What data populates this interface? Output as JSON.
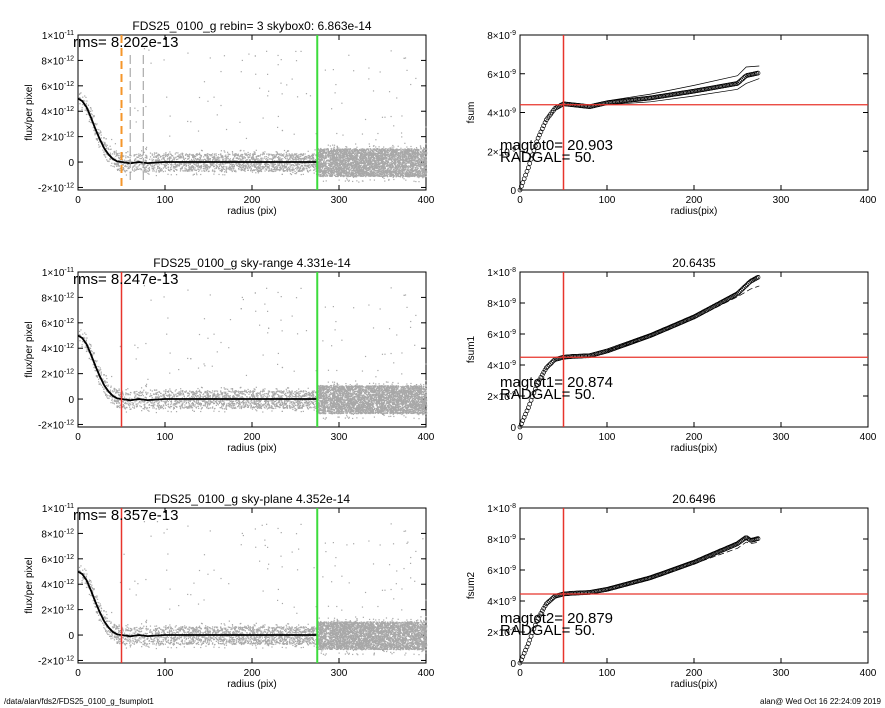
{
  "footer": {
    "path": "/data/alan/fds2/FDS25_0100_g_fsumplot1",
    "stamp": "alan@  Wed Oct 16 22:24:09 2019"
  },
  "colors": {
    "red_line": "#e8342c",
    "green_line": "#3cdc3c",
    "orange_dash": "#f5962a",
    "scatter_gray": "#a8a8a8",
    "profile": "#000000"
  },
  "chart_data": [
    {
      "id": "profile-row1",
      "type": "scatter",
      "title": "FDS25_0100_g rebin= 3    skybox0:  6.863e-14",
      "annotation": "rms= 8.202e-13",
      "xlabel": "radius (pix)",
      "ylabel": "flux/per pixel",
      "xlim": [
        0,
        400
      ],
      "ylim": [
        -2.2e-12,
        1e-11
      ],
      "xticks": [
        "0",
        "100",
        "200",
        "300",
        "400"
      ],
      "yticks": [
        {
          "value": -2e-12,
          "mant": "-2×10",
          "exp": "-12"
        },
        {
          "value": 0,
          "mant": "0",
          "exp": ""
        },
        {
          "value": 2e-12,
          "mant": "2×10",
          "exp": "-12"
        },
        {
          "value": 4e-12,
          "mant": "4×10",
          "exp": "-12"
        },
        {
          "value": 6e-12,
          "mant": "6×10",
          "exp": "-12"
        },
        {
          "value": 8e-12,
          "mant": "8×10",
          "exp": "-12"
        },
        {
          "value": 1e-11,
          "mant": "1×10",
          "exp": "-11"
        }
      ],
      "green_vline_x": 275,
      "red_vline_x": null,
      "orange_dashed_vline_x": 50,
      "gray_dashed_vlines_x": [
        60,
        75
      ],
      "profile": {
        "x": [
          0,
          5,
          10,
          15,
          20,
          25,
          30,
          35,
          40,
          45,
          50,
          60,
          70,
          80,
          100,
          150,
          200,
          250,
          275
        ],
        "y": [
          5e-12,
          4.8e-12,
          4.3e-12,
          3.5e-12,
          2.6e-12,
          1.8e-12,
          1.1e-12,
          6e-13,
          2.5e-13,
          5e-14,
          0,
          -1e-13,
          0,
          -8e-14,
          0,
          0,
          0,
          0,
          0
        ]
      }
    },
    {
      "id": "fsum-row1",
      "type": "scatter",
      "title": "",
      "ylabel": "fsum",
      "xlabel": "radius(pix)",
      "xlim": [
        0,
        400
      ],
      "ylim": [
        0,
        8e-09
      ],
      "xticks": [
        "0",
        "100",
        "200",
        "300",
        "400"
      ],
      "yticks": [
        {
          "value": 0,
          "mant": "0",
          "exp": ""
        },
        {
          "value": 2e-09,
          "mant": "2×10",
          "exp": "-9"
        },
        {
          "value": 4e-09,
          "mant": "4×10",
          "exp": "-9"
        },
        {
          "value": 6e-09,
          "mant": "6×10",
          "exp": "-9"
        },
        {
          "value": 8e-09,
          "mant": "8×10",
          "exp": "-9"
        }
      ],
      "red_vline_x": 50,
      "red_hline_y": 4.4e-09,
      "annotation_line1": "magtot0=  20.903",
      "annotation_line2": "RADGAL=     50.",
      "series": [
        {
          "x": [
            0,
            10,
            20,
            30,
            40,
            50,
            60,
            80,
            100,
            150,
            200,
            250,
            260,
            275
          ],
          "y": [
            0,
            1.2e-09,
            2.6e-09,
            3.6e-09,
            4.2e-09,
            4.45e-09,
            4.4e-09,
            4.3e-09,
            4.5e-09,
            4.75e-09,
            5.1e-09,
            5.5e-09,
            5.9e-09,
            6.05e-09
          ]
        }
      ],
      "bands": {
        "x": [
          100,
          150,
          200,
          250,
          260,
          275
        ],
        "upper": [
          4.6e-09,
          4.95e-09,
          5.4e-09,
          5.9e-09,
          6.35e-09,
          6.4e-09
        ],
        "lower": [
          4.4e-09,
          4.55e-09,
          4.85e-09,
          5.2e-09,
          5.5e-09,
          5.75e-09
        ]
      }
    },
    {
      "id": "profile-row2",
      "type": "scatter",
      "title": "FDS25_0100_g sky-range  4.331e-14",
      "annotation": "rms= 8.247e-13",
      "xlabel": "radius (pix)",
      "ylabel": "flux/per pixel",
      "xlim": [
        0,
        400
      ],
      "ylim": [
        -2.2e-12,
        1e-11
      ],
      "xticks": [
        "0",
        "100",
        "200",
        "300",
        "400"
      ],
      "yticks": [
        {
          "value": -2e-12,
          "mant": "-2×10",
          "exp": "-12"
        },
        {
          "value": 0,
          "mant": "0",
          "exp": ""
        },
        {
          "value": 2e-12,
          "mant": "2×10",
          "exp": "-12"
        },
        {
          "value": 4e-12,
          "mant": "4×10",
          "exp": "-12"
        },
        {
          "value": 6e-12,
          "mant": "6×10",
          "exp": "-12"
        },
        {
          "value": 8e-12,
          "mant": "8×10",
          "exp": "-12"
        },
        {
          "value": 1e-11,
          "mant": "1×10",
          "exp": "-11"
        }
      ],
      "green_vline_x": 275,
      "red_vline_x": 50,
      "orange_dashed_vline_x": null,
      "gray_dashed_vlines_x": [],
      "profile": {
        "x": [
          0,
          5,
          10,
          15,
          20,
          25,
          30,
          35,
          40,
          45,
          50,
          60,
          70,
          80,
          100,
          150,
          200,
          250,
          275
        ],
        "y": [
          5e-12,
          4.8e-12,
          4.3e-12,
          3.5e-12,
          2.6e-12,
          1.8e-12,
          1.1e-12,
          6e-13,
          2.5e-13,
          5e-14,
          0,
          -1e-13,
          0,
          -8e-14,
          0,
          0,
          0,
          0,
          0
        ]
      }
    },
    {
      "id": "fsum-row2",
      "type": "scatter",
      "title": "20.6435",
      "ylabel": "fsum1",
      "xlabel": "radius(pix)",
      "xlim": [
        0,
        400
      ],
      "ylim": [
        0,
        1e-08
      ],
      "xticks": [
        "0",
        "100",
        "200",
        "300",
        "400"
      ],
      "yticks": [
        {
          "value": 0,
          "mant": "0",
          "exp": ""
        },
        {
          "value": 2e-09,
          "mant": "2×10",
          "exp": "-9"
        },
        {
          "value": 4e-09,
          "mant": "4×10",
          "exp": "-9"
        },
        {
          "value": 6e-09,
          "mant": "6×10",
          "exp": "-9"
        },
        {
          "value": 8e-09,
          "mant": "8×10",
          "exp": "-9"
        },
        {
          "value": 1e-08,
          "mant": "1×10",
          "exp": "-8"
        }
      ],
      "red_vline_x": 50,
      "red_hline_y": 4.5e-09,
      "annotation_line1": "magtot1=  20.874",
      "annotation_line2": "RADGAL=     50.",
      "series": [
        {
          "x": [
            0,
            10,
            20,
            30,
            40,
            50,
            60,
            80,
            100,
            150,
            200,
            250,
            265,
            275
          ],
          "y": [
            0,
            1.3e-09,
            2.8e-09,
            3.8e-09,
            4.35e-09,
            4.5e-09,
            4.55e-09,
            4.6e-09,
            4.9e-09,
            5.9e-09,
            7.1e-09,
            8.6e-09,
            9.4e-09,
            9.7e-09
          ]
        }
      ],
      "bands": {
        "x": [
          100,
          150,
          200,
          250,
          265,
          275
        ],
        "upper": [
          4.95e-09,
          6e-09,
          7.2e-09,
          8.7e-09,
          9.5e-09,
          9.8e-09
        ],
        "lower": [
          4.85e-09,
          5.8e-09,
          7e-09,
          8.4e-09,
          8.9e-09,
          9.1e-09
        ]
      }
    },
    {
      "id": "profile-row3",
      "type": "scatter",
      "title": "FDS25_0100_g sky-plane  4.352e-14",
      "annotation": "rms= 8.357e-13",
      "xlabel": "radius (pix)",
      "ylabel": "flux/per pixel",
      "xlim": [
        0,
        400
      ],
      "ylim": [
        -2.2e-12,
        1e-11
      ],
      "xticks": [
        "0",
        "100",
        "200",
        "300",
        "400"
      ],
      "yticks": [
        {
          "value": -2e-12,
          "mant": "-2×10",
          "exp": "-12"
        },
        {
          "value": 0,
          "mant": "0",
          "exp": ""
        },
        {
          "value": 2e-12,
          "mant": "2×10",
          "exp": "-12"
        },
        {
          "value": 4e-12,
          "mant": "4×10",
          "exp": "-12"
        },
        {
          "value": 6e-12,
          "mant": "6×10",
          "exp": "-12"
        },
        {
          "value": 8e-12,
          "mant": "8×10",
          "exp": "-12"
        },
        {
          "value": 1e-11,
          "mant": "1×10",
          "exp": "-11"
        }
      ],
      "green_vline_x": 275,
      "red_vline_x": 50,
      "orange_dashed_vline_x": null,
      "gray_dashed_vlines_x": [],
      "profile": {
        "x": [
          0,
          5,
          10,
          15,
          20,
          25,
          30,
          35,
          40,
          45,
          50,
          60,
          70,
          80,
          100,
          150,
          200,
          250,
          275
        ],
        "y": [
          5e-12,
          4.8e-12,
          4.3e-12,
          3.5e-12,
          2.6e-12,
          1.8e-12,
          1.1e-12,
          6e-13,
          2.5e-13,
          5e-14,
          0,
          -1e-13,
          0,
          -8e-14,
          0,
          0,
          0,
          0,
          0
        ]
      }
    },
    {
      "id": "fsum-row3",
      "type": "scatter",
      "title": "20.6496",
      "ylabel": "fsum2",
      "xlabel": "radius(pix)",
      "xlim": [
        0,
        400
      ],
      "ylim": [
        0,
        1e-08
      ],
      "xticks": [
        "0",
        "100",
        "200",
        "300",
        "400"
      ],
      "yticks": [
        {
          "value": 0,
          "mant": "0",
          "exp": ""
        },
        {
          "value": 2e-09,
          "mant": "2×10",
          "exp": "-9"
        },
        {
          "value": 4e-09,
          "mant": "4×10",
          "exp": "-9"
        },
        {
          "value": 6e-09,
          "mant": "6×10",
          "exp": "-9"
        },
        {
          "value": 8e-09,
          "mant": "8×10",
          "exp": "-9"
        },
        {
          "value": 1e-08,
          "mant": "1×10",
          "exp": "-8"
        }
      ],
      "red_vline_x": 50,
      "red_hline_y": 4.45e-09,
      "annotation_line1": "magtot2=  20.879",
      "annotation_line2": "RADGAL=     50.",
      "series": [
        {
          "x": [
            0,
            10,
            20,
            30,
            40,
            50,
            60,
            80,
            100,
            150,
            200,
            250,
            260,
            265,
            275
          ],
          "y": [
            0,
            1.3e-09,
            2.8e-09,
            3.8e-09,
            4.3e-09,
            4.45e-09,
            4.5e-09,
            4.55e-09,
            4.75e-09,
            5.5e-09,
            6.5e-09,
            7.7e-09,
            8.1e-09,
            7.9e-09,
            8.05e-09
          ]
        }
      ],
      "bands": {
        "x": [
          100,
          150,
          200,
          250,
          260,
          265,
          275
        ],
        "upper": [
          4.85e-09,
          5.6e-09,
          6.6e-09,
          7.8e-09,
          8.2e-09,
          8e-09,
          8.1e-09
        ],
        "lower": [
          4.65e-09,
          5.4e-09,
          6.4e-09,
          7.4e-09,
          7.8e-09,
          7.7e-09,
          7.8e-09
        ]
      }
    }
  ]
}
